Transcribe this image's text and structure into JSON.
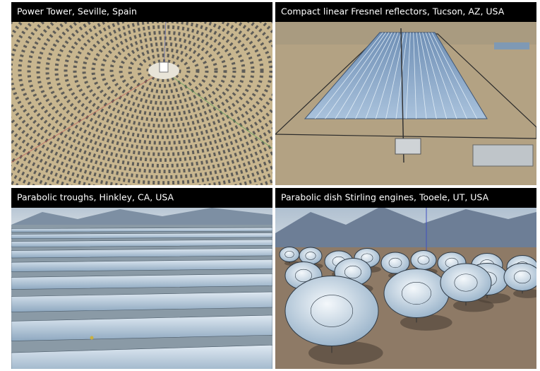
{
  "panels": [
    {
      "caption": "Power Tower, Seville, Spain"
    },
    {
      "caption": "Compact linear Fresnel reflectors, Tucson, AZ, USA"
    },
    {
      "caption": "Parabolic troughs, Hinkley, CA, USA"
    },
    {
      "caption": "Parabolic dish Stirling engines, Tooele, UT, USA"
    }
  ]
}
